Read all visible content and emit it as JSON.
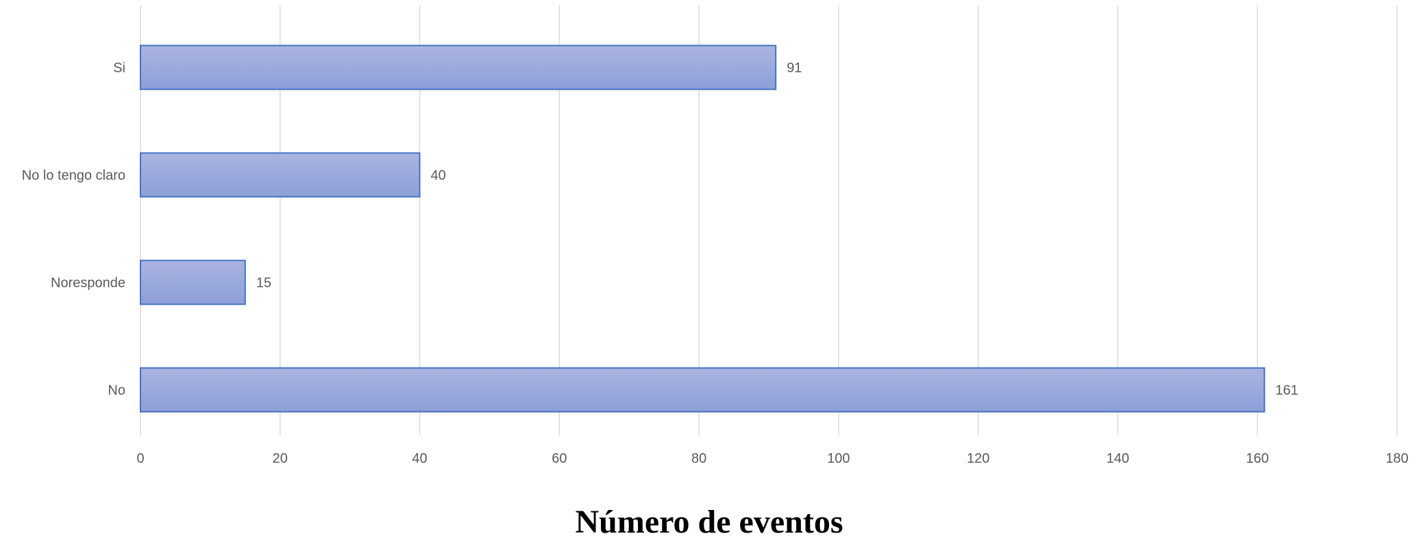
{
  "chart_data": {
    "type": "bar",
    "orientation": "horizontal",
    "categories": [
      "Si",
      "No lo tengo claro",
      "Noresponde",
      "No"
    ],
    "values": [
      91,
      40,
      15,
      161
    ],
    "data_labels": [
      "91",
      "40",
      "15",
      "161"
    ],
    "xlabel": "Número de eventos",
    "ylabel": "",
    "xlim": [
      0,
      180
    ],
    "x_ticks": [
      "0",
      "20",
      "40",
      "60",
      "80",
      "100",
      "120",
      "140",
      "160",
      "180"
    ],
    "grid": "vertical",
    "legend": "none"
  },
  "colors": {
    "bar_top": "#aab4e0",
    "bar_bottom": "#8d9fd8",
    "bar_border": "#4472c4",
    "grid": "#d9d9d9",
    "text": "#595959"
  }
}
